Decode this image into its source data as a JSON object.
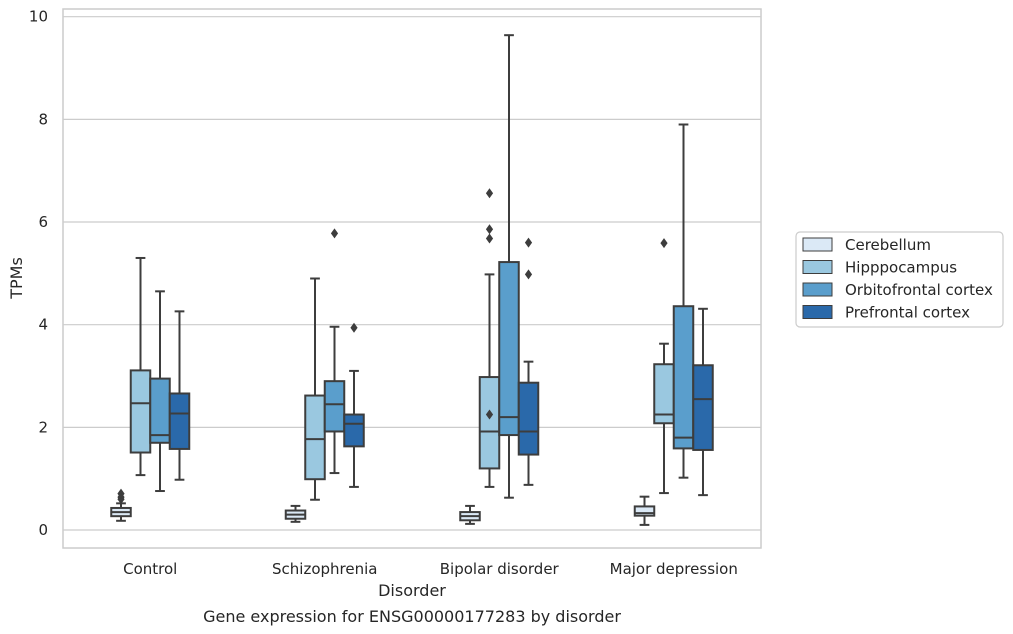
{
  "chart_data": {
    "type": "boxplot",
    "title": "Gene expression for ENSG00000177283 by disorder",
    "xlabel": "Disorder",
    "ylabel": "TPMs",
    "ylim": [
      -0.35,
      10.15
    ],
    "yticks": [
      0,
      2,
      4,
      6,
      8,
      10
    ],
    "grid": "horizontal",
    "legend_position": "right",
    "categories": [
      "Control",
      "Schizophrenia",
      "Bipolar disorder",
      "Major depression"
    ],
    "series": [
      {
        "name": "Cerebellum",
        "color": "#dbe9f6",
        "boxes": [
          {
            "whisker_low": 0.18,
            "q1": 0.27,
            "median": 0.35,
            "q3": 0.43,
            "whisker_high": 0.52,
            "outliers": [
              0.6,
              0.64,
              0.71
            ]
          },
          {
            "whisker_low": 0.16,
            "q1": 0.22,
            "median": 0.3,
            "q3": 0.38,
            "whisker_high": 0.47,
            "outliers": []
          },
          {
            "whisker_low": 0.12,
            "q1": 0.19,
            "median": 0.27,
            "q3": 0.35,
            "whisker_high": 0.47,
            "outliers": []
          },
          {
            "whisker_low": 0.1,
            "q1": 0.28,
            "median": 0.33,
            "q3": 0.46,
            "whisker_high": 0.65,
            "outliers": []
          }
        ]
      },
      {
        "name": "Hipppocampus",
        "color": "#9ac8e0",
        "boxes": [
          {
            "whisker_low": 1.07,
            "q1": 1.51,
            "median": 2.47,
            "q3": 3.11,
            "whisker_high": 5.3,
            "outliers": []
          },
          {
            "whisker_low": 0.59,
            "q1": 0.99,
            "median": 1.77,
            "q3": 2.62,
            "whisker_high": 4.9,
            "outliers": []
          },
          {
            "whisker_low": 0.84,
            "q1": 1.2,
            "median": 1.92,
            "q3": 2.98,
            "whisker_high": 4.98,
            "outliers": [
              2.25,
              5.68,
              5.86,
              6.56
            ]
          },
          {
            "whisker_low": 0.72,
            "q1": 2.08,
            "median": 2.25,
            "q3": 3.23,
            "whisker_high": 3.63,
            "outliers": [
              5.59
            ]
          }
        ]
      },
      {
        "name": "Orbitofrontal cortex",
        "color": "#5a9ecc",
        "boxes": [
          {
            "whisker_low": 0.76,
            "q1": 1.7,
            "median": 1.85,
            "q3": 2.95,
            "whisker_high": 4.65,
            "outliers": []
          },
          {
            "whisker_low": 1.11,
            "q1": 1.92,
            "median": 2.45,
            "q3": 2.9,
            "whisker_high": 3.96,
            "outliers": [
              5.78
            ]
          },
          {
            "whisker_low": 0.63,
            "q1": 1.85,
            "median": 2.2,
            "q3": 5.22,
            "whisker_high": 9.64,
            "outliers": []
          },
          {
            "whisker_low": 1.02,
            "q1": 1.59,
            "median": 1.8,
            "q3": 4.36,
            "whisker_high": 7.9,
            "outliers": []
          }
        ]
      },
      {
        "name": "Prefrontal cortex",
        "color": "#2a69aa",
        "boxes": [
          {
            "whisker_low": 0.98,
            "q1": 1.58,
            "median": 2.27,
            "q3": 2.66,
            "whisker_high": 4.26,
            "outliers": []
          },
          {
            "whisker_low": 0.84,
            "q1": 1.63,
            "median": 2.07,
            "q3": 2.25,
            "whisker_high": 3.1,
            "outliers": [
              3.94
            ]
          },
          {
            "whisker_low": 0.88,
            "q1": 1.47,
            "median": 1.92,
            "q3": 2.87,
            "whisker_high": 3.28,
            "outliers": [
              4.98,
              5.6
            ]
          },
          {
            "whisker_low": 0.68,
            "q1": 1.56,
            "median": 2.55,
            "q3": 3.21,
            "whisker_high": 4.31,
            "outliers": []
          }
        ]
      }
    ]
  }
}
